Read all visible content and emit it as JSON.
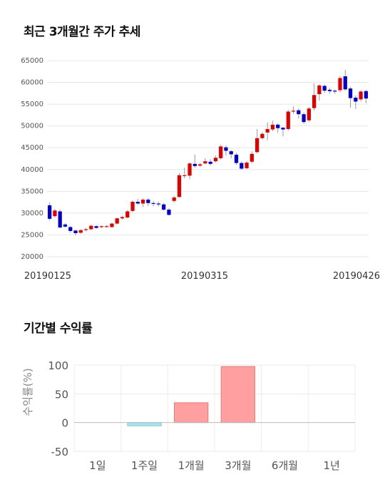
{
  "sections": {
    "price_title": "최근 3개월간 주가 추세",
    "return_title": "기간별 수익률"
  },
  "chart_data": [
    {
      "type": "candlestick",
      "title": "최근 3개월간 주가 추세",
      "ylim": [
        20000,
        65000
      ],
      "y_ticks": [
        20000,
        25000,
        30000,
        35000,
        40000,
        45000,
        50000,
        55000,
        60000,
        65000
      ],
      "x_labels": [
        "20190125",
        "20190315",
        "20190426"
      ],
      "grid": true,
      "colors": {
        "up": "#e00000",
        "down": "#0000cc",
        "wick": "#999999"
      },
      "candles": [
        [
          31800,
          28700,
          32500,
          28300
        ],
        [
          29300,
          30600,
          31000,
          29000
        ],
        [
          30400,
          26700,
          30800,
          26500
        ],
        [
          27400,
          26900,
          27700,
          26700
        ],
        [
          26800,
          25900,
          27000,
          25500
        ],
        [
          26000,
          25400,
          26200,
          24900
        ],
        [
          25500,
          26100,
          26300,
          25200
        ],
        [
          26100,
          26300,
          26600,
          25800
        ],
        [
          26300,
          27100,
          27300,
          26100
        ],
        [
          27000,
          26600,
          27200,
          26400
        ],
        [
          26800,
          27000,
          27200,
          26500
        ],
        [
          26900,
          27000,
          27300,
          26700
        ],
        [
          26800,
          27600,
          27800,
          26600
        ],
        [
          27600,
          28800,
          29000,
          27400
        ],
        [
          28800,
          29100,
          29400,
          28500
        ],
        [
          29000,
          30400,
          30700,
          28800
        ],
        [
          30500,
          32600,
          32900,
          30200
        ],
        [
          32600,
          32200,
          33300,
          31900
        ],
        [
          32200,
          33100,
          33400,
          31400
        ],
        [
          33100,
          32300,
          33500,
          31600
        ],
        [
          32300,
          32200,
          32800,
          31600
        ],
        [
          32200,
          32000,
          32600,
          31500
        ],
        [
          32000,
          30800,
          32300,
          30500
        ],
        [
          30800,
          29600,
          31100,
          29400
        ],
        [
          32800,
          33600,
          34000,
          32400
        ],
        [
          33700,
          38700,
          39200,
          33500
        ],
        [
          38500,
          38700,
          40400,
          38000
        ],
        [
          38600,
          41400,
          41600,
          37800
        ],
        [
          41300,
          40800,
          43400,
          40400
        ],
        [
          40900,
          41200,
          41600,
          40600
        ],
        [
          41400,
          41900,
          42600,
          41200
        ],
        [
          41800,
          41300,
          42400,
          40900
        ],
        [
          41900,
          42700,
          43200,
          41600
        ],
        [
          42600,
          45300,
          45700,
          42300
        ],
        [
          45100,
          44300,
          45500,
          43200
        ],
        [
          44200,
          43500,
          44500,
          42600
        ],
        [
          43400,
          41500,
          43800,
          41100
        ],
        [
          41500,
          40200,
          41800,
          39900
        ],
        [
          40300,
          41600,
          42000,
          40100
        ],
        [
          41800,
          43600,
          44200,
          41400
        ],
        [
          44000,
          47200,
          49300,
          43700
        ],
        [
          47200,
          48200,
          48600,
          46900
        ],
        [
          48500,
          49300,
          50800,
          46700
        ],
        [
          49200,
          50300,
          51200,
          48800
        ],
        [
          50300,
          49500,
          50600,
          48400
        ],
        [
          49600,
          49200,
          49800,
          47600
        ],
        [
          49300,
          53300,
          53700,
          48900
        ],
        [
          53300,
          53500,
          54500,
          52800
        ],
        [
          53600,
          52700,
          54000,
          51700
        ],
        [
          52700,
          50900,
          53100,
          50500
        ],
        [
          51300,
          54000,
          54400,
          50900
        ],
        [
          54100,
          57100,
          59800,
          53500
        ],
        [
          57300,
          59300,
          59600,
          55800
        ],
        [
          59200,
          58100,
          59500,
          57600
        ],
        [
          58300,
          58000,
          58800,
          57400
        ],
        [
          58100,
          57900,
          58400,
          57400
        ],
        [
          58200,
          61000,
          61400,
          57700
        ],
        [
          61400,
          58400,
          62900,
          58100
        ],
        [
          58600,
          56400,
          59000,
          54200
        ],
        [
          56500,
          55600,
          57000,
          53900
        ],
        [
          56100,
          57900,
          58200,
          55600
        ],
        [
          58000,
          56300,
          58300,
          55200
        ]
      ]
    },
    {
      "type": "bar",
      "title": "기간별 수익률",
      "ylabel": "수익률(%)",
      "ylim": [
        -50,
        100
      ],
      "y_ticks": [
        -50,
        0,
        50,
        100
      ],
      "categories": [
        "1일",
        "1주일",
        "1개월",
        "3개월",
        "6개월",
        "1년"
      ],
      "values": [
        null,
        -5.6,
        34.5,
        97.5,
        null,
        null
      ],
      "colors": {
        "positive_fill": "#ff9f9f",
        "positive_stroke": "#e27b7b",
        "negative_fill": "#a9e3ed",
        "negative_stroke": "#7ccad8"
      }
    }
  ]
}
